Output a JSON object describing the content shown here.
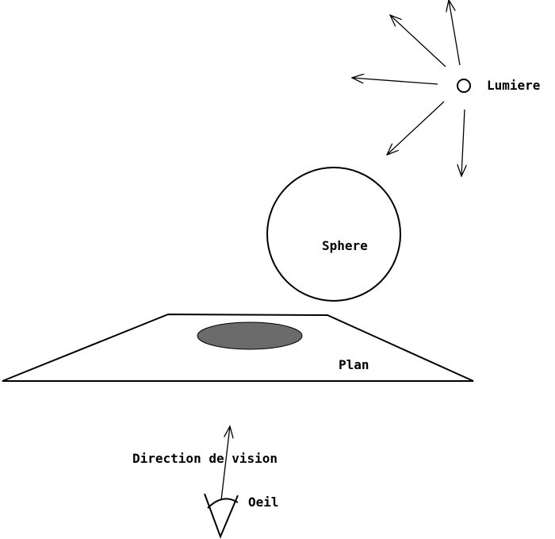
{
  "labels": {
    "light": "Lumiere",
    "sphere": "Sphere",
    "plane": "Plan",
    "view_direction": "Direction de vision",
    "eye": "Oeil"
  },
  "colors": {
    "background": "#ffffff",
    "stroke": "#000000",
    "shadow": "#6b6b6b"
  },
  "icons": {
    "light": "light-source-circle-icon",
    "eye": "eye-icon",
    "arrow": "arrow-icon"
  }
}
